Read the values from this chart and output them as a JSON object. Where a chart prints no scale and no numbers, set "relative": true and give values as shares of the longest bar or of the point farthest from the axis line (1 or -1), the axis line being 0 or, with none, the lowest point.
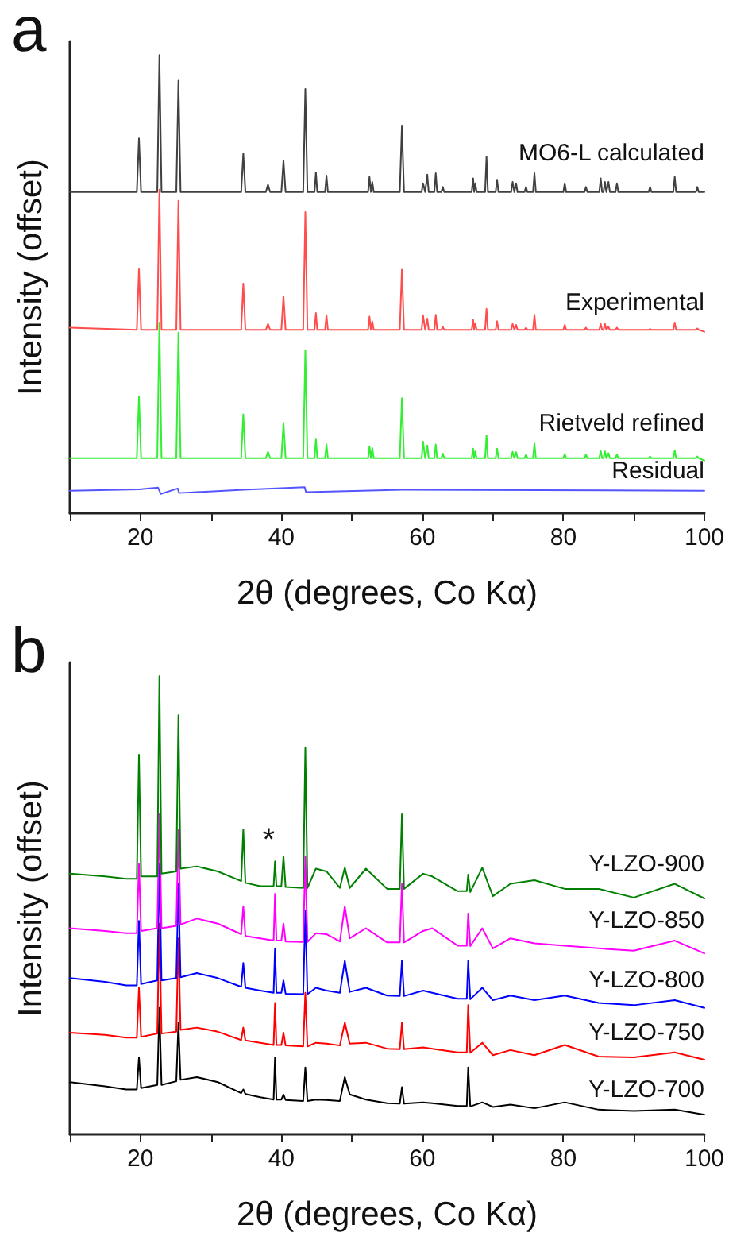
{
  "chart_data": [
    {
      "type": "line",
      "title": "a",
      "xlabel": "2θ (degrees, Co Kα)",
      "ylabel": "Intensity (offset)",
      "relative": true,
      "grid": false,
      "xlim": [
        10,
        100
      ],
      "xticks": [
        {
          "value": 10,
          "label": null
        },
        20,
        {
          "value": 30,
          "label": null
        },
        40,
        {
          "value": 50,
          "label": null
        },
        60,
        {
          "value": 70,
          "label": null
        },
        80,
        {
          "value": 90,
          "label": null
        },
        100
      ],
      "x": [
        10,
        19.5,
        19.8,
        20.1,
        22.4,
        22.7,
        23,
        25.1,
        25.4,
        25.7,
        34.3,
        34.6,
        34.9,
        37.8,
        38.1,
        38.4,
        40,
        40.3,
        40.6,
        43.1,
        43.4,
        43.7,
        44.7,
        44.9,
        45.1,
        46.2,
        46.4,
        46.6,
        52.3,
        52.5,
        52.7,
        52.9,
        53.1,
        56.8,
        57.1,
        57.4,
        59.9,
        60.1,
        60.4,
        60.7,
        60.9,
        61.7,
        61.9,
        62.1,
        62.7,
        62.9,
        63.1,
        67,
        67.2,
        67.35,
        67.5,
        67.7,
        68.9,
        69.1,
        69.3,
        70.4,
        70.6,
        70.8,
        72.6,
        72.8,
        73.05,
        73.3,
        73.5,
        74.5,
        74.7,
        74.9,
        75.7,
        75.9,
        76.1,
        80,
        80.2,
        80.4,
        83,
        83.2,
        83.4,
        85.1,
        85.3,
        85.5,
        85.7,
        85.9,
        86.1,
        86.2,
        86.4,
        86.6,
        87.4,
        87.6,
        87.8,
        92.1,
        92.3,
        92.5,
        95.6,
        95.8,
        96,
        98.8,
        99,
        99.2,
        100
      ],
      "series": [
        {
          "name": "MO6-L calculated",
          "color": "#404040",
          "values": [
            0.701,
            0.701,
            0.818,
            0.701,
            0.701,
            1.0,
            0.701,
            0.701,
            0.944,
            0.701,
            0.701,
            0.785,
            0.701,
            0.701,
            0.717,
            0.701,
            0.701,
            0.77,
            0.701,
            0.701,
            0.926,
            0.701,
            0.701,
            0.744,
            0.701,
            0.701,
            0.737,
            0.701,
            0.701,
            0.734,
            0.701,
            0.723,
            0.701,
            0.701,
            0.846,
            0.701,
            0.701,
            0.72,
            0.701,
            0.739,
            0.701,
            0.701,
            0.742,
            0.701,
            0.701,
            0.712,
            0.701,
            0.701,
            0.731,
            0.701,
            0.72,
            0.701,
            0.701,
            0.778,
            0.701,
            0.701,
            0.728,
            0.701,
            0.701,
            0.723,
            0.701,
            0.72,
            0.701,
            0.701,
            0.712,
            0.701,
            0.701,
            0.742,
            0.701,
            0.701,
            0.72,
            0.701,
            0.701,
            0.712,
            0.701,
            0.701,
            0.731,
            0.701,
            0.701,
            0.723,
            0.701,
            0.701,
            0.723,
            0.701,
            0.701,
            0.72,
            0.701,
            0.701,
            0.712,
            0.701,
            0.701,
            0.734,
            0.701,
            0.701,
            0.712,
            0.701,
            0.701
          ]
        },
        {
          "name": "Experimental",
          "color": "#ff4d4d",
          "values": [
            0.405,
            0.4,
            0.534,
            0.4,
            0.4,
            0.706,
            0.4,
            0.4,
            0.682,
            0.4,
            0.4,
            0.501,
            0.4,
            0.4,
            0.413,
            0.4,
            0.4,
            0.474,
            0.4,
            0.4,
            0.657,
            0.4,
            0.4,
            0.437,
            0.4,
            0.4,
            0.432,
            0.4,
            0.4,
            0.429,
            0.4,
            0.419,
            0.4,
            0.4,
            0.533,
            0.4,
            0.4,
            0.432,
            0.4,
            0.425,
            0.4,
            0.4,
            0.433,
            0.4,
            0.4,
            0.407,
            0.4,
            0.4,
            0.422,
            0.4,
            0.415,
            0.4,
            0.4,
            0.446,
            0.4,
            0.4,
            0.419,
            0.4,
            0.4,
            0.413,
            0.4,
            0.411,
            0.4,
            0.4,
            0.405,
            0.4,
            0.4,
            0.433,
            0.4,
            0.4,
            0.411,
            0.4,
            0.4,
            0.405,
            0.4,
            0.4,
            0.413,
            0.4,
            0.4,
            0.413,
            0.4,
            0.4,
            0.407,
            0.4,
            0.4,
            0.405,
            0.4,
            0.4,
            0.402,
            0.4,
            0.4,
            0.416,
            0.4,
            0.4,
            0.403,
            0.4,
            0.396
          ]
        },
        {
          "name": "Rietveld refined",
          "color": "#33ee33",
          "values": [
            0.12,
            0.12,
            0.254,
            0.12,
            0.12,
            0.416,
            0.12,
            0.12,
            0.394,
            0.12,
            0.12,
            0.216,
            0.12,
            0.12,
            0.134,
            0.12,
            0.12,
            0.197,
            0.12,
            0.12,
            0.356,
            0.12,
            0.12,
            0.161,
            0.12,
            0.12,
            0.15,
            0.12,
            0.12,
            0.146,
            0.12,
            0.142,
            0.12,
            0.12,
            0.251,
            0.12,
            0.12,
            0.156,
            0.12,
            0.148,
            0.12,
            0.12,
            0.15,
            0.12,
            0.12,
            0.13,
            0.12,
            0.12,
            0.141,
            0.12,
            0.135,
            0.12,
            0.12,
            0.17,
            0.12,
            0.12,
            0.141,
            0.12,
            0.12,
            0.134,
            0.12,
            0.133,
            0.12,
            0.12,
            0.128,
            0.12,
            0.12,
            0.152,
            0.12,
            0.12,
            0.129,
            0.12,
            0.12,
            0.128,
            0.12,
            0.12,
            0.136,
            0.12,
            0.12,
            0.135,
            0.12,
            0.12,
            0.131,
            0.12,
            0.12,
            0.128,
            0.12,
            0.12,
            0.124,
            0.12,
            0.12,
            0.137,
            0.12,
            0.12,
            0.124,
            0.12,
            0.115
          ]
        },
        {
          "name": "Residual",
          "color": "#5555ff",
          "x": [
            10,
            19.8,
            22.5,
            22.9,
            25.3,
            25.5,
            34.6,
            43.3,
            43.5,
            57.1,
            100
          ],
          "values": [
            0.049,
            0.052,
            0.056,
            0.042,
            0.054,
            0.044,
            0.051,
            0.057,
            0.046,
            0.051,
            0.049
          ]
        }
      ]
    },
    {
      "type": "line",
      "title": "b",
      "xlabel": "2θ (degrees, Co Kα)",
      "ylabel": "Intensity (offset)",
      "relative": true,
      "grid": false,
      "xlim": [
        10,
        100
      ],
      "xticks": [
        {
          "value": 10,
          "label": null
        },
        20,
        {
          "value": 30,
          "label": null
        },
        40,
        {
          "value": 50,
          "label": null
        },
        60,
        {
          "value": 70,
          "label": null
        },
        80,
        {
          "value": 90,
          "label": null
        },
        100
      ],
      "annotations": [
        {
          "text": "*",
          "x": 39.1,
          "y": 0.596
        }
      ],
      "x": [
        10,
        15,
        18,
        19.5,
        19.8,
        20.1,
        22.4,
        22.7,
        23,
        25.1,
        25.4,
        25.7,
        28,
        31,
        34.3,
        34.6,
        34.9,
        37,
        38.9,
        39.1,
        39.3,
        40,
        40.3,
        40.6,
        43.1,
        43.4,
        43.7,
        44.9,
        46.4,
        48.3,
        49,
        49.7,
        52,
        55,
        56.8,
        57.1,
        57.4,
        60.1,
        61.4,
        65,
        66.3,
        66.5,
        66.8,
        68.5,
        70,
        72.5,
        75.9,
        80.2,
        85,
        90,
        95.8,
        100
      ],
      "series": [
        {
          "name": "Y-LZO-900",
          "color": "#008000",
          "values": [
            0.569,
            0.563,
            0.558,
            0.558,
            0.829,
            0.563,
            0.563,
            1.0,
            0.569,
            0.574,
            0.915,
            0.58,
            0.585,
            0.574,
            0.553,
            0.666,
            0.549,
            0.542,
            0.542,
            0.596,
            0.542,
            0.542,
            0.607,
            0.54,
            0.538,
            0.845,
            0.538,
            0.58,
            0.574,
            0.538,
            0.582,
            0.538,
            0.58,
            0.536,
            0.536,
            0.699,
            0.536,
            0.569,
            0.563,
            0.531,
            0.531,
            0.567,
            0.529,
            0.582,
            0.52,
            0.547,
            0.555,
            0.536,
            0.536,
            0.517,
            0.547,
            0.515
          ]
        },
        {
          "name": "Y-LZO-850",
          "color": "#ff00ff",
          "values": [
            0.45,
            0.444,
            0.439,
            0.439,
            0.59,
            0.444,
            0.45,
            0.699,
            0.45,
            0.455,
            0.666,
            0.458,
            0.471,
            0.46,
            0.437,
            0.498,
            0.433,
            0.428,
            0.423,
            0.525,
            0.423,
            0.423,
            0.46,
            0.421,
            0.42,
            0.607,
            0.42,
            0.439,
            0.437,
            0.421,
            0.498,
            0.428,
            0.45,
            0.419,
            0.419,
            0.547,
            0.419,
            0.444,
            0.45,
            0.412,
            0.412,
            0.482,
            0.411,
            0.45,
            0.406,
            0.428,
            0.417,
            0.412,
            0.406,
            0.401,
            0.423,
            0.395
          ]
        },
        {
          "name": "Y-LZO-800",
          "color": "#0000ff",
          "values": [
            0.341,
            0.333,
            0.325,
            0.325,
            0.466,
            0.328,
            0.336,
            0.59,
            0.336,
            0.341,
            0.547,
            0.343,
            0.352,
            0.341,
            0.322,
            0.374,
            0.32,
            0.314,
            0.309,
            0.406,
            0.309,
            0.309,
            0.336,
            0.307,
            0.306,
            0.488,
            0.306,
            0.32,
            0.314,
            0.309,
            0.379,
            0.311,
            0.32,
            0.303,
            0.302,
            0.379,
            0.302,
            0.314,
            0.309,
            0.296,
            0.296,
            0.379,
            0.295,
            0.32,
            0.293,
            0.303,
            0.293,
            0.303,
            0.287,
            0.282,
            0.293,
            0.276
          ]
        },
        {
          "name": "Y-LZO-750",
          "color": "#ff0000",
          "values": [
            0.222,
            0.217,
            0.211,
            0.211,
            0.32,
            0.213,
            0.22,
            0.46,
            0.22,
            0.224,
            0.428,
            0.228,
            0.233,
            0.224,
            0.206,
            0.233,
            0.205,
            0.2,
            0.195,
            0.287,
            0.195,
            0.195,
            0.222,
            0.194,
            0.192,
            0.309,
            0.192,
            0.2,
            0.198,
            0.194,
            0.244,
            0.198,
            0.2,
            0.187,
            0.186,
            0.244,
            0.186,
            0.19,
            0.187,
            0.179,
            0.179,
            0.282,
            0.178,
            0.2,
            0.173,
            0.184,
            0.173,
            0.195,
            0.17,
            0.168,
            0.179,
            0.163
          ]
        },
        {
          "name": "Y-LZO-700",
          "color": "#000000",
          "values": [
            0.114,
            0.105,
            0.098,
            0.098,
            0.168,
            0.101,
            0.108,
            0.276,
            0.108,
            0.116,
            0.244,
            0.119,
            0.125,
            0.114,
            0.09,
            0.098,
            0.088,
            0.081,
            0.076,
            0.168,
            0.076,
            0.076,
            0.087,
            0.075,
            0.073,
            0.146,
            0.073,
            0.076,
            0.075,
            0.073,
            0.125,
            0.087,
            0.076,
            0.068,
            0.067,
            0.103,
            0.067,
            0.07,
            0.068,
            0.062,
            0.062,
            0.146,
            0.061,
            0.07,
            0.06,
            0.065,
            0.057,
            0.07,
            0.054,
            0.051,
            0.054,
            0.043
          ]
        }
      ]
    }
  ]
}
